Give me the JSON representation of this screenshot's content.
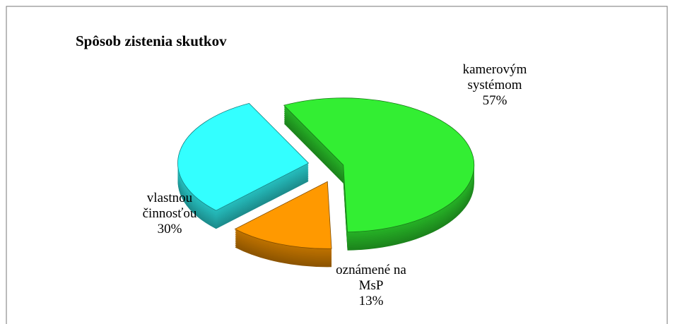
{
  "chart_data": {
    "type": "pie",
    "title": "Spôsob zistenia skutkov",
    "categories": [
      "kamerovým systémom",
      "oznámené na MsP",
      "vlastnou činnosťou"
    ],
    "values": [
      57,
      13,
      30
    ],
    "value_labels": [
      "57%",
      "13%",
      "30%"
    ],
    "colors": [
      "#33ee33",
      "#ff9900",
      "#33ffff"
    ]
  }
}
